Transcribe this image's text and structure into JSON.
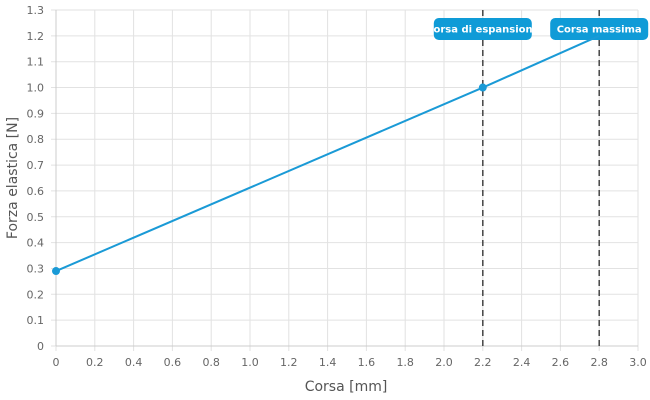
{
  "chart_data": {
    "type": "line",
    "xlabel": "Corsa [mm]",
    "ylabel": "Forza elastica [N]",
    "xlim": [
      0,
      3.0
    ],
    "ylim": [
      0,
      1.3
    ],
    "x_ticks": [
      "0",
      "0.2",
      "0.4",
      "0.6",
      "0.8",
      "1.0",
      "1.2",
      "1.4",
      "1.6",
      "1.8",
      "2.0",
      "2.2",
      "2.4",
      "2.6",
      "2.8",
      "3.0"
    ],
    "y_ticks": [
      "0",
      "0.1",
      "0.2",
      "0.3",
      "0.4",
      "0.5",
      "0.6",
      "0.7",
      "0.8",
      "0.9",
      "1.0",
      "1.1",
      "1.2",
      "1.3"
    ],
    "grid": true,
    "series": [
      {
        "color": "#1a9ad6",
        "x": [
          0,
          2.2,
          2.8
        ],
        "y": [
          0.29,
          1.0,
          1.2
        ]
      }
    ],
    "markers": [
      {
        "x": 0,
        "y": 0.29
      },
      {
        "x": 2.2,
        "y": 1.0
      }
    ],
    "annotations": [
      {
        "x": 2.2,
        "label": "Corsa di espansione",
        "style": "dashed-vertical-line"
      },
      {
        "x": 2.8,
        "label": "Corsa massima",
        "style": "dashed-vertical-line"
      }
    ],
    "colors": {
      "line": "#1a9ad6",
      "label_bg": "#0f9bd7",
      "grid": "#e2e2e2",
      "annotation_line": "#444444"
    }
  }
}
